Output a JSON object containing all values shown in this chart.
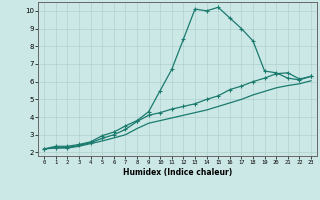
{
  "xlabel": "Humidex (Indice chaleur)",
  "background_color": "#cce8e6",
  "grid_color": "#b0d0ce",
  "line_color": "#1a7a6e",
  "xlim": [
    -0.5,
    23.5
  ],
  "ylim": [
    1.8,
    10.5
  ],
  "xticks": [
    0,
    1,
    2,
    3,
    4,
    5,
    6,
    7,
    8,
    9,
    10,
    11,
    12,
    13,
    14,
    15,
    16,
    17,
    18,
    19,
    20,
    21,
    22,
    23
  ],
  "yticks": [
    2,
    3,
    4,
    5,
    6,
    7,
    8,
    9,
    10
  ],
  "curve1_x": [
    0,
    1,
    2,
    3,
    4,
    5,
    6,
    7,
    8,
    9,
    10,
    11,
    12,
    13,
    14,
    15,
    16,
    17,
    18,
    19,
    20,
    21,
    22,
    23
  ],
  "curve1_y": [
    2.2,
    2.35,
    2.35,
    2.45,
    2.6,
    2.95,
    3.15,
    3.5,
    3.8,
    4.3,
    5.5,
    6.7,
    8.4,
    10.1,
    10.0,
    10.2,
    9.6,
    9.0,
    8.3,
    6.6,
    6.5,
    6.2,
    6.1,
    6.3
  ],
  "curve2_x": [
    0,
    1,
    2,
    3,
    4,
    5,
    6,
    7,
    8,
    9,
    10,
    11,
    12,
    13,
    14,
    15,
    16,
    17,
    18,
    19,
    20,
    21,
    22,
    23
  ],
  "curve2_y": [
    2.2,
    2.28,
    2.28,
    2.4,
    2.55,
    2.8,
    3.0,
    3.3,
    3.75,
    4.1,
    4.25,
    4.45,
    4.6,
    4.75,
    5.0,
    5.2,
    5.55,
    5.75,
    6.0,
    6.2,
    6.45,
    6.5,
    6.15,
    6.3
  ],
  "curve3_x": [
    0,
    1,
    2,
    3,
    4,
    5,
    6,
    7,
    8,
    9,
    10,
    11,
    12,
    13,
    14,
    15,
    16,
    17,
    18,
    19,
    20,
    21,
    22,
    23
  ],
  "curve3_y": [
    2.2,
    2.25,
    2.25,
    2.35,
    2.5,
    2.65,
    2.82,
    3.0,
    3.35,
    3.65,
    3.8,
    3.95,
    4.1,
    4.25,
    4.4,
    4.6,
    4.8,
    5.0,
    5.25,
    5.45,
    5.65,
    5.78,
    5.88,
    6.05
  ]
}
